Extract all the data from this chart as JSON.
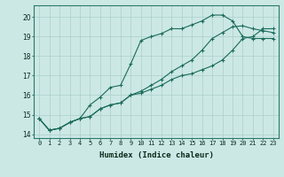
{
  "xlabel": "Humidex (Indice chaleur)",
  "ylabel": "",
  "bg_color": "#cce8e5",
  "line_color": "#1a6b5a",
  "grid_color": "#aacfcb",
  "xlim": [
    -0.5,
    23.5
  ],
  "ylim": [
    13.8,
    20.6
  ],
  "xticks": [
    0,
    1,
    2,
    3,
    4,
    5,
    6,
    7,
    8,
    9,
    10,
    11,
    12,
    13,
    14,
    15,
    16,
    17,
    18,
    19,
    20,
    21,
    22,
    23
  ],
  "yticks": [
    14,
    15,
    16,
    17,
    18,
    19,
    20
  ],
  "line1_x": [
    0,
    1,
    2,
    3,
    4,
    5,
    6,
    7,
    8,
    9,
    10,
    11,
    12,
    13,
    14,
    15,
    16,
    17,
    18,
    19,
    20,
    21,
    22,
    23
  ],
  "line1_y": [
    14.8,
    14.2,
    14.3,
    14.6,
    14.8,
    15.5,
    15.9,
    16.4,
    16.5,
    17.6,
    18.8,
    19.0,
    19.15,
    19.4,
    19.4,
    19.6,
    19.8,
    20.1,
    20.1,
    19.8,
    19.0,
    18.9,
    18.9,
    18.9
  ],
  "line2_x": [
    0,
    1,
    2,
    3,
    4,
    5,
    6,
    7,
    8,
    9,
    10,
    11,
    12,
    13,
    14,
    15,
    16,
    17,
    18,
    19,
    20,
    21,
    22,
    23
  ],
  "line2_y": [
    14.8,
    14.2,
    14.3,
    14.6,
    14.8,
    14.9,
    15.3,
    15.5,
    15.6,
    16.0,
    16.1,
    16.3,
    16.5,
    16.8,
    17.0,
    17.1,
    17.3,
    17.5,
    17.8,
    18.3,
    18.9,
    19.0,
    19.4,
    19.4
  ],
  "line3_x": [
    0,
    1,
    2,
    3,
    4,
    5,
    6,
    7,
    8,
    9,
    10,
    11,
    12,
    13,
    14,
    15,
    16,
    17,
    18,
    19,
    20,
    21,
    22,
    23
  ],
  "line3_y": [
    14.8,
    14.2,
    14.3,
    14.6,
    14.8,
    14.9,
    15.3,
    15.5,
    15.6,
    16.0,
    16.2,
    16.5,
    16.8,
    17.2,
    17.5,
    17.8,
    18.3,
    18.9,
    19.2,
    19.5,
    19.55,
    19.4,
    19.3,
    19.2
  ],
  "xlabel_fontsize": 6.5,
  "xlabel_fontweight": "bold",
  "tick_fontsize": 5.0,
  "lw": 0.8,
  "ms": 2.5
}
